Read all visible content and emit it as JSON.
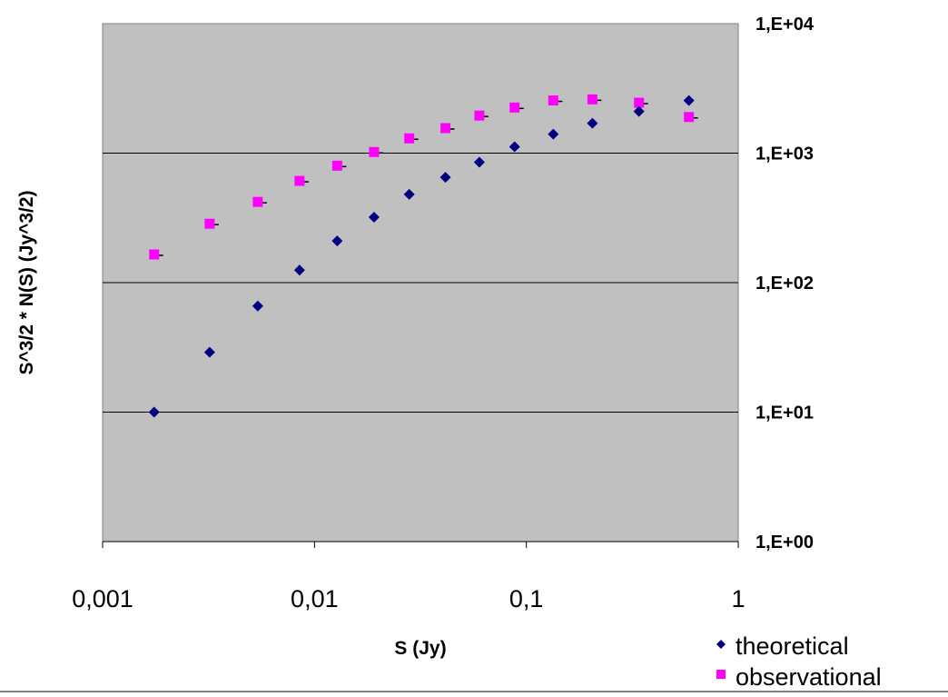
{
  "chart_data": {
    "type": "scatter",
    "title": "",
    "xlabel": "S (Jy)",
    "ylabel": "S^3/2 * N(S)  (Jy^3/2)",
    "x_scale": "log",
    "y_scale": "log",
    "xlim": [
      0.001,
      1
    ],
    "ylim": [
      1,
      10000
    ],
    "x_ticks": [
      "0,001",
      "0,01",
      "0,1",
      "1"
    ],
    "y_ticks": [
      "1,E+00",
      "1,E+01",
      "1,E+02",
      "1,E+03",
      "1,E+04"
    ],
    "grid": "horizontal major",
    "plot_background": "#c0c0c0",
    "legend_position": "bottom-right",
    "series": [
      {
        "name": "theoretical",
        "marker": "diamond",
        "color": "#000080",
        "x": [
          0.00175,
          0.0032,
          0.0054,
          0.0085,
          0.0128,
          0.0191,
          0.028,
          0.0415,
          0.06,
          0.088,
          0.134,
          0.205,
          0.34,
          0.585
        ],
        "y": [
          10,
          29,
          66,
          125,
          210,
          320,
          480,
          650,
          850,
          1120,
          1400,
          1700,
          2100,
          2550
        ]
      },
      {
        "name": "observational",
        "marker": "square",
        "color": "#ff00ff",
        "x": [
          0.00175,
          0.0032,
          0.0054,
          0.0085,
          0.0128,
          0.0191,
          0.028,
          0.0415,
          0.06,
          0.088,
          0.134,
          0.205,
          0.34,
          0.585
        ],
        "y": [
          165,
          285,
          420,
          610,
          800,
          1020,
          1300,
          1560,
          1950,
          2250,
          2550,
          2600,
          2450,
          1900
        ]
      }
    ]
  }
}
